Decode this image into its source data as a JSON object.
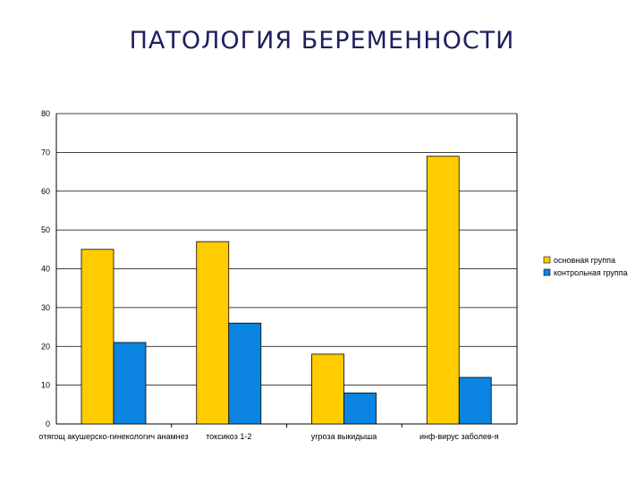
{
  "slide": {
    "title": "ПАТОЛОГИЯ БЕРЕМЕННОСТИ"
  },
  "colors": {
    "series_1": "#ffcc00",
    "series_2": "#0a84e0",
    "grid": "#000000",
    "title": "#1f1f5f"
  },
  "chart_data": {
    "type": "bar",
    "title": "",
    "xlabel": "",
    "ylabel": "",
    "categories": [
      "отягощ акушерско-гинекологич анамнез",
      "токсикоз 1-2",
      "угроза выкидыша",
      "инф-вирус заболев-я"
    ],
    "series": [
      {
        "name": "основная группа",
        "values": [
          45,
          47,
          18,
          69
        ]
      },
      {
        "name": "контрольная группа",
        "values": [
          21,
          26,
          8,
          12
        ]
      }
    ],
    "ylim": [
      0,
      80
    ],
    "yticks": [
      0,
      10,
      20,
      30,
      40,
      50,
      60,
      70,
      80
    ],
    "grid": true,
    "legend": "right"
  }
}
